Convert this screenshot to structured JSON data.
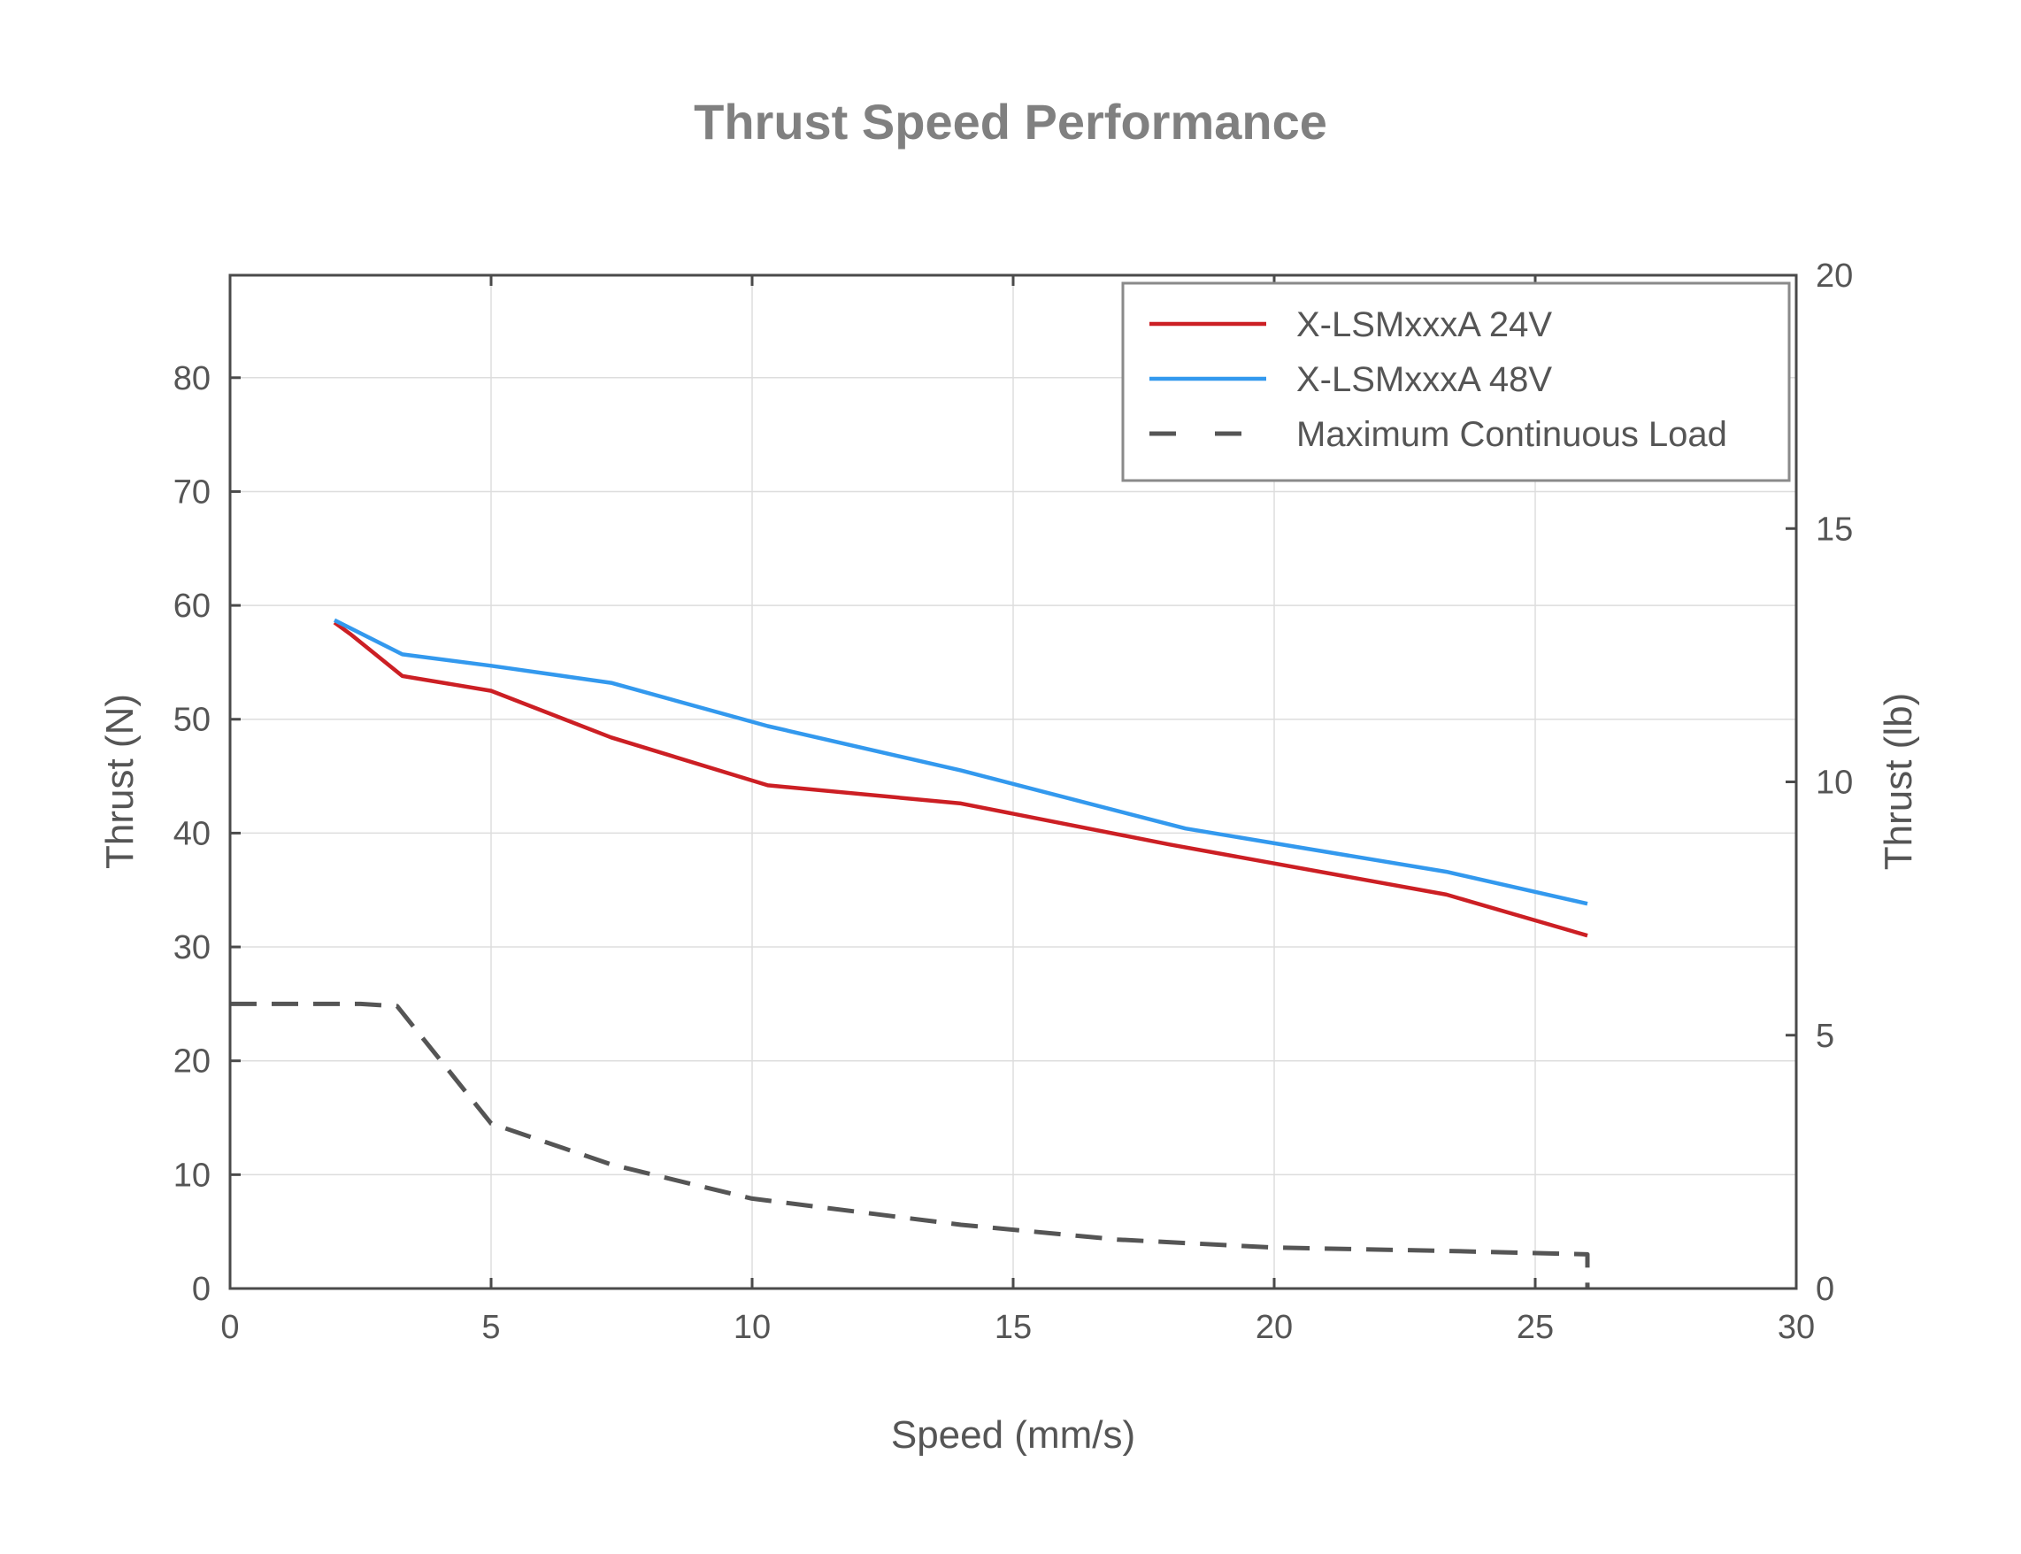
{
  "chart_data": {
    "type": "line",
    "title": "Thrust Speed Performance",
    "xlabel": "Speed (mm/s)",
    "ylabel": "Thrust (N)",
    "y2label": "Thrust (lb)",
    "xlim": [
      0,
      30
    ],
    "ylim": [
      0,
      89
    ],
    "y2lim": [
      0,
      20
    ],
    "xticks": [
      "0",
      "5",
      "10",
      "15",
      "20",
      "25",
      "30"
    ],
    "yticks": [
      "0",
      "10",
      "20",
      "30",
      "40",
      "50",
      "60",
      "70",
      "80"
    ],
    "y2ticks": [
      "0",
      "5",
      "10",
      "15",
      "20"
    ],
    "grid": true,
    "legend_position": "top-right",
    "series": [
      {
        "name": "X-LSMxxxA 24V",
        "color": "#cc1f24",
        "style": "solid",
        "x": [
          2.0,
          2.3,
          3.3,
          5.0,
          7.3,
          10.3,
          14.0,
          18.0,
          23.3,
          26.0
        ],
        "y": [
          58.5,
          57.5,
          53.8,
          52.5,
          48.4,
          44.2,
          42.6,
          39.0,
          34.6,
          31.0
        ]
      },
      {
        "name": "X-LSMxxxA 48V",
        "color": "#3399ee",
        "style": "solid",
        "x": [
          2.0,
          3.3,
          5.0,
          7.3,
          10.3,
          14.0,
          18.3,
          23.3,
          26.0
        ],
        "y": [
          58.7,
          55.7,
          54.7,
          53.2,
          49.4,
          45.5,
          40.4,
          36.6,
          33.8
        ]
      },
      {
        "name": "Maximum Continuous Load",
        "color": "#555555",
        "style": "dashed",
        "x": [
          0,
          2.5,
          3.2,
          5.0,
          7.3,
          9.0,
          10.0,
          14.0,
          17.0,
          20.0,
          23.3,
          26.0,
          26.0
        ],
        "y": [
          25.0,
          25.0,
          24.8,
          14.5,
          10.9,
          9.0,
          7.9,
          5.6,
          4.3,
          3.6,
          3.3,
          3.0,
          0.0
        ]
      }
    ]
  }
}
